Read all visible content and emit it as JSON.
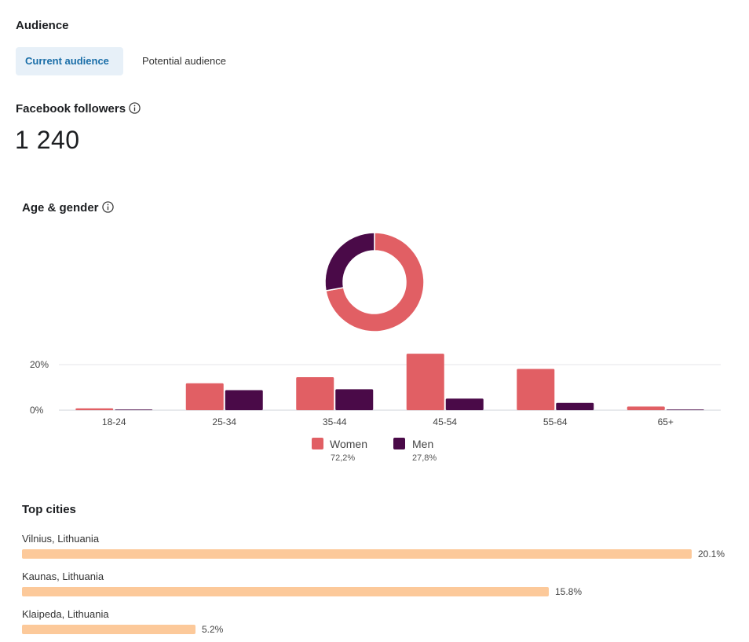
{
  "header": {
    "title": "Audience"
  },
  "tabs": [
    {
      "label": "Current audience",
      "active": true
    },
    {
      "label": "Potential audience",
      "active": false
    }
  ],
  "followers": {
    "label": "Facebook followers",
    "value": "1 240"
  },
  "age_gender": {
    "title": "Age & gender",
    "legend": [
      {
        "name": "Women",
        "percent": "72,2%",
        "color": "#e15f64"
      },
      {
        "name": "Men",
        "percent": "27,8%",
        "color": "#4a0a48"
      }
    ]
  },
  "chart_data": [
    {
      "type": "pie",
      "slices": [
        {
          "label": "Women",
          "value": 72.2
        },
        {
          "label": "Men",
          "value": 27.8
        }
      ]
    },
    {
      "type": "bar",
      "categories": [
        "18-24",
        "25-34",
        "35-44",
        "45-54",
        "55-64",
        "65+"
      ],
      "series": [
        {
          "name": "Women",
          "values": [
            0.8,
            11.8,
            14.5,
            24.8,
            18.1,
            1.6
          ]
        },
        {
          "name": "Men",
          "values": [
            0.3,
            8.8,
            9.2,
            5.1,
            3.2,
            0.3
          ]
        }
      ],
      "yticks": [
        "0%",
        "20%"
      ],
      "ylim": [
        0,
        30
      ],
      "grid": true
    },
    {
      "type": "bar",
      "orientation": "horizontal",
      "title": "Top cities",
      "categories": [
        "Vilnius, Lithuania",
        "Kaunas, Lithuania",
        "Klaipeda, Lithuania"
      ],
      "values": [
        20.1,
        15.8,
        5.2
      ],
      "labels": [
        "20.1%",
        "15.8%",
        "5.2%"
      ]
    }
  ],
  "colors": {
    "women": "#e15f64",
    "men": "#4a0a48",
    "city_bar": "#fcc99a",
    "tab_active_bg": "#e7f0f8",
    "tab_active_text": "#1a6ea8"
  }
}
